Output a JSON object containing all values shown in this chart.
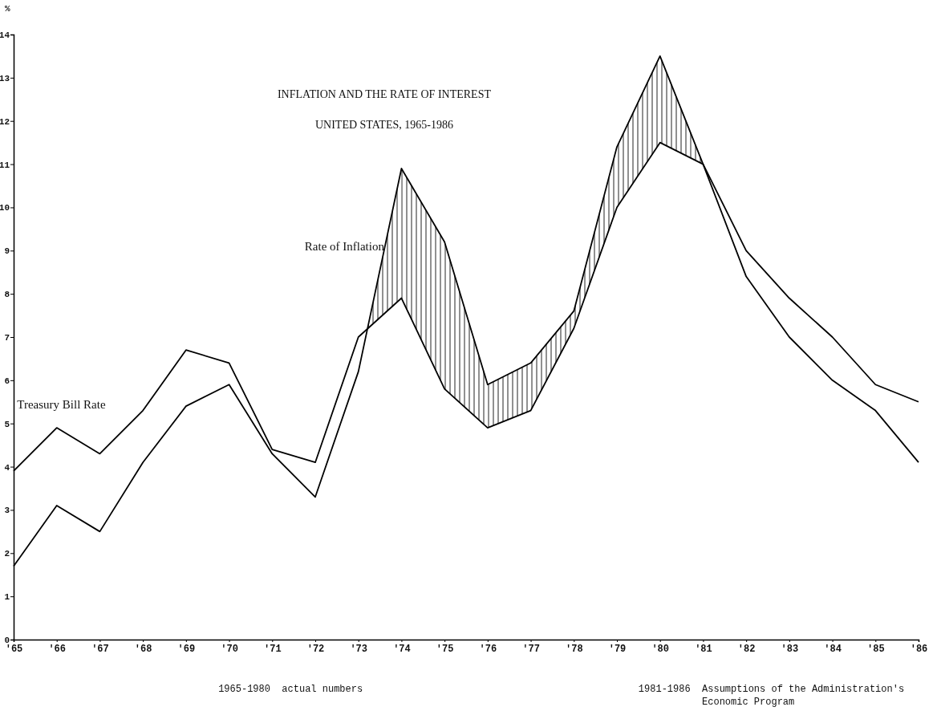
{
  "chart_data": {
    "type": "line",
    "title": "INFLATION AND THE RATE OF INTEREST",
    "subtitle": "UNITED STATES, 1965-1986",
    "ylabel": "%",
    "categories": [
      "'65",
      "'66",
      "'67",
      "'68",
      "'69",
      "'70",
      "'71",
      "'72",
      "'73",
      "'74",
      "'75",
      "'76",
      "'77",
      "'78",
      "'79",
      "'80",
      "'81",
      "'82",
      "'83",
      "'84",
      "'85",
      "'86"
    ],
    "series": [
      {
        "name": "Treasury Bill Rate",
        "color": "#000000",
        "values": [
          3.9,
          4.9,
          4.3,
          5.3,
          6.7,
          6.4,
          4.4,
          4.1,
          7.0,
          7.9,
          5.8,
          4.9,
          5.3,
          7.2,
          10.0,
          11.5,
          11.0,
          9.0,
          7.9,
          7.0,
          5.9,
          5.5
        ]
      },
      {
        "name": "Rate of Inflation",
        "color": "#000000",
        "values": [
          1.7,
          3.1,
          2.5,
          4.1,
          5.4,
          5.9,
          4.3,
          3.3,
          6.2,
          10.9,
          9.2,
          5.9,
          6.4,
          7.6,
          11.4,
          13.5,
          11.0,
          8.4,
          7.0,
          6.0,
          5.3,
          4.1
        ]
      }
    ],
    "ylim": [
      0,
      14
    ],
    "yticks": [
      0,
      1,
      2,
      3,
      4,
      5,
      6,
      7,
      8,
      9,
      10,
      11,
      12,
      13,
      14
    ],
    "grid": false,
    "legend": false,
    "marker": "none",
    "line_style": "solid",
    "annotations": [
      "1965-1980  actual numbers",
      "1981-1986  Assumptions of the Administration's Economic Program"
    ]
  }
}
